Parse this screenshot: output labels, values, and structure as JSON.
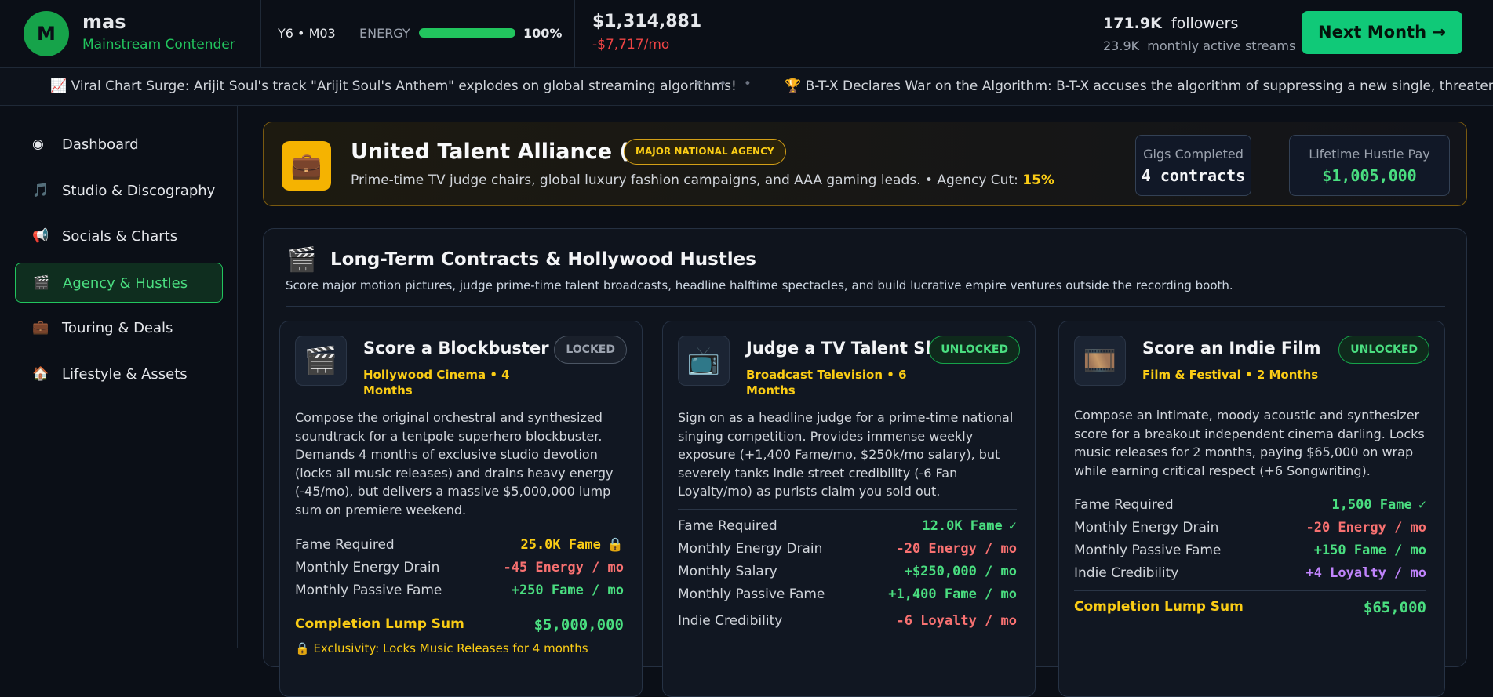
{
  "header": {
    "avatar": "M",
    "name": "mas",
    "rank": "Mainstream Contender",
    "date": "Y6 • M03",
    "energy_label": "ENERGY",
    "energy_value": "100%",
    "cash": "$1,314,881",
    "cash_flow": "-$7,717/mo",
    "followers_value": "171.9K",
    "followers_label": "followers",
    "streams_value": "23.9K",
    "streams_label": "monthly active streams",
    "next_button": "Next Month →"
  },
  "ticker": [
    "Viral Chart Surge: Arijit Soul's track \"Arijit Soul's Anthem\" explodes on global streaming algorithms!",
    "B-T-X Declares War on the Algorithm: B-T-X accuses the algorithm of suppressing a new single, threatens-wide revolt."
  ],
  "sidebar": {
    "items": [
      "Dashboard",
      "Studio & Discography",
      "Socials & Charts",
      "Agency & Hustles",
      "Touring & Deals",
      "Lifestyle & Assets"
    ],
    "active": 3
  },
  "agency": {
    "name": "United Talent Alliance (UTA)",
    "tier": "MAJOR NATIONAL AGENCY",
    "description": "Prime-time TV judge chairs, global luxury fashion campaigns, and AAA gaming leads. • Agency Cut:",
    "cut": "15%",
    "stats": [
      {
        "label": "Gigs Completed",
        "value": "4 contracts"
      },
      {
        "label": "Lifetime Hustle Pay",
        "value": "$1,005,000"
      }
    ]
  },
  "contracts": {
    "title": "Long-Term Contracts & Hollywood Hustles",
    "subtitle": "Score major motion pictures, judge prime-time talent broadcasts, headline halftime spectacles, and build lucrative empire ventures outside the recording booth.",
    "cards": [
      {
        "title": "Score a Blockbuster Film",
        "category": "Hollywood Cinema",
        "duration": "4 Months",
        "status": "LOCKED",
        "locked": true,
        "description": "Compose the original orchestral and synthesized soundtrack for a tentpole superhero blockbuster. Demands 4 months of exclusive studio devotion (locks all music releases) and drains heavy energy (-45/mo), but delivers a massive $5,000,000 lump sum on premiere weekend.",
        "rows": [
          {
            "label": "Fame Required",
            "value": "25.0K Fame",
            "color": "#facc15"
          },
          {
            "label": "Monthly Energy Drain",
            "value": "-45 Energy / mo",
            "color": "#f87171"
          },
          {
            "label": "Monthly Passive Fame",
            "value": "+250 Fame / mo",
            "color": "#4ade80"
          }
        ],
        "lump": {
          "label": "Completion Lump Sum",
          "value": "$5,000,000"
        },
        "note": "Exclusivity: Locks Music Releases for 4 months"
      },
      {
        "title": "Judge a TV Talent Show",
        "category": "Broadcast Television",
        "duration": "6 Months",
        "status": "UNLOCKED",
        "locked": false,
        "description": "Sign on as a headline judge for a prime-time national singing competition. Provides immense weekly exposure (+1,400 Fame/mo, $250k/mo salary), but severely tanks indie street credibility (-6 Fan Loyalty/mo) as purists claim you sold out.",
        "rows": [
          {
            "label": "Fame Required",
            "value": "12.0K Fame",
            "color": "#4ade80"
          },
          {
            "label": "Monthly Energy Drain",
            "value": "-20 Energy / mo",
            "color": "#f87171"
          },
          {
            "label": "Monthly Salary",
            "value": "+$250,000 / mo",
            "color": "#4ade80"
          },
          {
            "label": "Monthly Passive Fame",
            "value": "+1,400 Fame / mo",
            "color": "#4ade80"
          },
          {
            "label": "Indie Credibility",
            "value": "-6 Loyalty / mo",
            "color": "#f87171"
          }
        ]
      },
      {
        "title": "Score an Indie Film",
        "category": "Film & Festival",
        "duration": "2 Months",
        "status": "UNLOCKED",
        "locked": false,
        "description": "Compose an intimate, moody acoustic and synthesizer score for a breakout independent cinema darling. Locks music releases for 2 months, paying $65,000 on wrap while earning critical respect (+6 Songwriting).",
        "rows": [
          {
            "label": "Fame Required",
            "value": "1,500 Fame",
            "color": "#4ade80"
          },
          {
            "label": "Monthly Energy Drain",
            "value": "-20 Energy / mo",
            "color": "#f87171"
          },
          {
            "label": "Monthly Passive Fame",
            "value": "+150 Fame / mo",
            "color": "#4ade80"
          },
          {
            "label": "Indie Credibility",
            "value": "+4 Loyalty / mo",
            "color": "#c084fc"
          }
        ],
        "lump": {
          "label": "Completion Lump Sum",
          "value": "$65,000"
        }
      }
    ]
  }
}
